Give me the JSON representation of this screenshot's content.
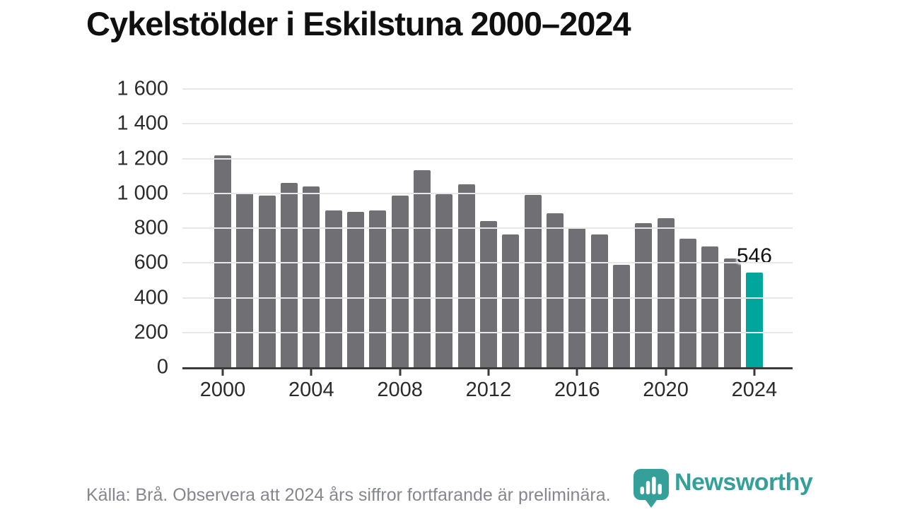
{
  "chart_data": {
    "type": "bar",
    "title": "Cykelstölder i Eskilstuna 2000–2024",
    "xlabel": "",
    "ylabel": "",
    "ylim": [
      0,
      1600
    ],
    "grid": "horizontal",
    "legend": "none",
    "categories": [
      "2000",
      "2001",
      "2002",
      "2003",
      "2004",
      "2005",
      "2006",
      "2007",
      "2008",
      "2009",
      "2010",
      "2011",
      "2012",
      "2013",
      "2014",
      "2015",
      "2016",
      "2017",
      "2018",
      "2019",
      "2020",
      "2021",
      "2022",
      "2023",
      "2024"
    ],
    "values": [
      1220,
      1005,
      985,
      1060,
      1040,
      900,
      895,
      900,
      985,
      1135,
      995,
      1050,
      840,
      765,
      990,
      885,
      800,
      765,
      590,
      830,
      855,
      740,
      695,
      625,
      546
    ],
    "y_tick_values": [
      0,
      200,
      400,
      600,
      800,
      1000,
      1200,
      1400,
      1600
    ],
    "y_tick_labels": [
      "0",
      "200",
      "400",
      "600",
      "800",
      "1 000",
      "1 200",
      "1 400",
      "1 600"
    ],
    "x_tick_indices": [
      0,
      4,
      8,
      12,
      16,
      20,
      24
    ],
    "x_tick_labels": [
      "2000",
      "2004",
      "2008",
      "2012",
      "2016",
      "2020",
      "2024"
    ],
    "bar_color": "#706F74",
    "highlight_color": "#00A69C",
    "highlight_index": 24,
    "annotation": {
      "text": "546",
      "index": 24
    }
  },
  "footer": {
    "source_note": "Källa: Brå. Observera att 2024 års siffror fortfarande är preliminära.",
    "brand": "Newsworthy"
  }
}
